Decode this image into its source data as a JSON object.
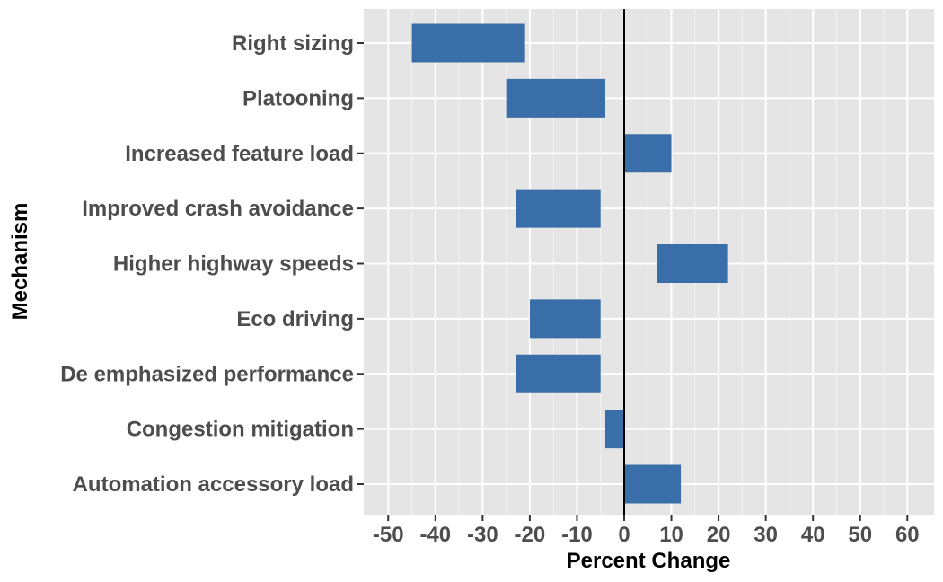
{
  "chart_data": {
    "type": "bar",
    "orientation": "horizontal",
    "subtype": "floating-range",
    "xlabel": "Percent Change",
    "ylabel": "Mechanism",
    "xlim": [
      -55,
      65
    ],
    "x_ticks": [
      -50,
      -40,
      -30,
      -20,
      -10,
      0,
      10,
      20,
      30,
      40,
      50,
      60
    ],
    "x_tick_labels": [
      "-50",
      "-40",
      "-30",
      "-20",
      "-10",
      "0",
      "10",
      "20",
      "30",
      "40",
      "50",
      "60"
    ],
    "grid": true,
    "reference_line_x": 0,
    "categories": [
      "Right sizing",
      "Platooning",
      "Increased feature load",
      "Improved crash avoidance",
      "Higher highway speeds",
      "Eco driving",
      "De emphasized performance",
      "Congestion mitigation",
      "Automation accessory load"
    ],
    "ranges": [
      [
        -45,
        -21
      ],
      [
        -25,
        -4
      ],
      [
        0,
        10
      ],
      [
        -23,
        -5
      ],
      [
        7,
        22
      ],
      [
        -20,
        -5
      ],
      [
        -23,
        -5
      ],
      [
        -4,
        0
      ],
      [
        0,
        12
      ]
    ],
    "colors": {
      "bar": "#3a6ea8",
      "panel": "#e5e5e5",
      "grid_major": "#ffffff",
      "grid_minor": "#f2f2f2",
      "zero_line": "#000000"
    }
  }
}
